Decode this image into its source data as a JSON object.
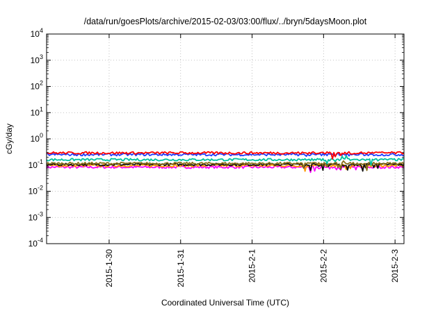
{
  "chart_data": {
    "type": "line",
    "title": "/data/run/goesPlots/archive/2015-02-03/03:00/flux/../bryn/5daysMoon.plot",
    "xlabel": "Coordinated Universal Time (UTC)",
    "ylabel": "cGy/day",
    "yscale": "log",
    "ylim": [
      0.0001,
      10000
    ],
    "y_ticks": [
      {
        "base": "10",
        "exp": "-4"
      },
      {
        "base": "10",
        "exp": "-3"
      },
      {
        "base": "10",
        "exp": "-2"
      },
      {
        "base": "10",
        "exp": "-1"
      },
      {
        "base": "10",
        "exp": "0"
      },
      {
        "base": "10",
        "exp": "1"
      },
      {
        "base": "10",
        "exp": "2"
      },
      {
        "base": "10",
        "exp": "3"
      },
      {
        "base": "10",
        "exp": "4"
      }
    ],
    "xlim": [
      "2015-01-29T03:00",
      "2015-02-03T03:00"
    ],
    "x_ticks": [
      "2015-1-30",
      "2015-1-31",
      "2015-2-1",
      "2015-2-2",
      "2015-2-3"
    ],
    "grid": true,
    "legend": "none",
    "series": [
      {
        "color": "#ff0000",
        "level": 0.29
      },
      {
        "color": "#1f3cff",
        "level": 0.25
      },
      {
        "color": "#00c0a0",
        "level": 0.16
      },
      {
        "color": "#8b6f1a",
        "level": 0.115
      },
      {
        "color": "#111111",
        "level": 0.105
      },
      {
        "color": "#ff9900",
        "level": 0.095
      },
      {
        "color": "#ff00ff",
        "level": 0.083
      }
    ]
  }
}
